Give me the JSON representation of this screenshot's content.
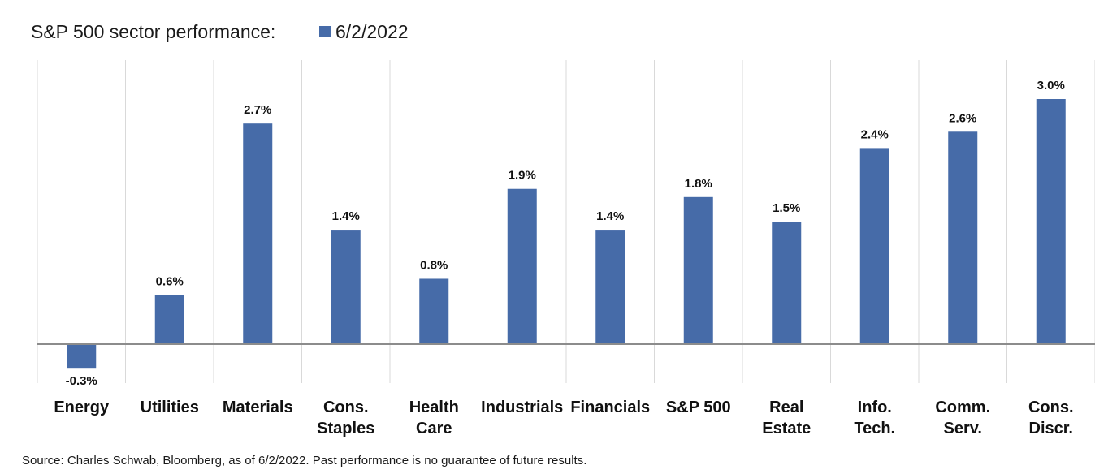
{
  "chart_data": {
    "type": "bar",
    "title": "S&P 500 sector performance:",
    "series": [
      {
        "name": "6/2/2022",
        "color": "#466BA8",
        "values": [
          -0.3,
          0.6,
          2.7,
          1.4,
          0.8,
          1.9,
          1.4,
          1.8,
          1.5,
          2.4,
          2.6,
          3.0
        ]
      }
    ],
    "categories": [
      [
        "Energy"
      ],
      [
        "Utilities"
      ],
      [
        "Materials"
      ],
      [
        "Cons.",
        "Staples"
      ],
      [
        "Health",
        "Care"
      ],
      [
        "Industrials"
      ],
      [
        "Financials"
      ],
      [
        "S&P 500"
      ],
      [
        "Real",
        "Estate"
      ],
      [
        "Info.",
        "Tech."
      ],
      [
        "Comm.",
        "Serv."
      ],
      [
        "Cons.",
        "Discr."
      ]
    ],
    "data_labels": [
      "-0.3%",
      "0.6%",
      "2.7%",
      "1.4%",
      "0.8%",
      "1.9%",
      "1.4%",
      "1.8%",
      "1.5%",
      "2.4%",
      "2.6%",
      "3.0%"
    ],
    "xlabel": "",
    "ylabel": "",
    "ylim": [
      -0.5,
      3.5
    ],
    "grid": "vertical category separators",
    "legend_position": "top",
    "source": "Source: Charles Schwab, Bloomberg, as of 6/2/2022.  Past performance is no guarantee of future results."
  }
}
